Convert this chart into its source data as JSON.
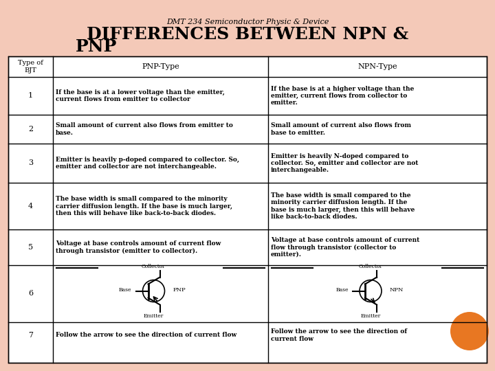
{
  "title_small": "DMT 234 Semiconductor Physic & Device",
  "bg_color": "#f4c9b8",
  "header_col1": "Type of\nBJT",
  "header_col2": "PNP-Type",
  "header_col3": "NPN-Type",
  "rows": [
    {
      "num": "1",
      "pnp": "If the base is at a lower voltage than the emitter,\ncurrent flows from emitter to collector",
      "npn": "If the base is at a higher voltage than the\nemitter, current flows from collector to\nemitter."
    },
    {
      "num": "2",
      "pnp": "Small amount of current also flows from emitter to\nbase.",
      "npn": "Small amount of current also flows from\nbase to emitter."
    },
    {
      "num": "3",
      "pnp": "Emitter is heavily p-doped compared to collector. So,\nemitter and collector are not interchangeable.",
      "npn": "Emitter is heavily N-doped compared to\ncollector. So, emitter and collector are not\ninterchangeable."
    },
    {
      "num": "4",
      "pnp": "The base width is small compared to the minority\ncarrier diffusion length. If the base is much larger,\nthen this will behave like back-to-back diodes.",
      "npn": "The base width is small compared to the\nminority carrier diffusion length. If the\nbase is much larger, then this will behave\nlike back-to-back diodes."
    },
    {
      "num": "5",
      "pnp": "Voltage at base controls amount of current flow\nthrough transistor (emitter to collector).",
      "npn": "Voltage at base controls amount of current\nflow through transistor (collector to\nemitter)."
    },
    {
      "num": "6",
      "pnp": "",
      "npn": ""
    },
    {
      "num": "7",
      "pnp": "Follow the arrow to see the direction of current flow",
      "npn": "Follow the arrow to see the direction of\ncurrent flow"
    }
  ],
  "orange_circle_color": "#e87722"
}
